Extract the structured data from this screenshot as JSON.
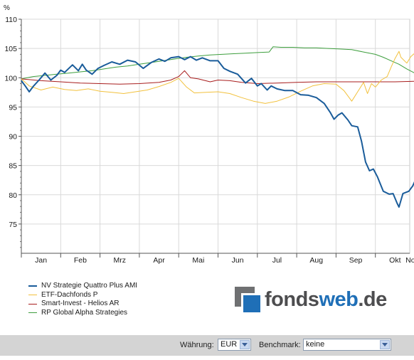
{
  "chart_data": {
    "type": "line",
    "ylabel": "%",
    "ylim": [
      70,
      110
    ],
    "yticks": [
      75,
      80,
      85,
      90,
      95,
      100,
      105,
      110
    ],
    "xlim": [
      0,
      10.3
    ],
    "month_labels": [
      "Jan",
      "Feb",
      "Mrz",
      "Apr",
      "Mai",
      "Jun",
      "Jul",
      "Aug",
      "Sep",
      "Okt",
      "Nov"
    ],
    "grid": true,
    "legend_position": "bottom-left",
    "series": [
      {
        "name": "NV Strategie Quattro Plus AMI",
        "color": "#1a5c9a",
        "width": 2,
        "points": [
          [
            0,
            99.5
          ],
          [
            0.1,
            98.6
          ],
          [
            0.2,
            97.6
          ],
          [
            0.3,
            98.5
          ],
          [
            0.45,
            99.6
          ],
          [
            0.6,
            100.8
          ],
          [
            0.75,
            99.6
          ],
          [
            0.9,
            100.4
          ],
          [
            1.0,
            101.3
          ],
          [
            1.1,
            100.9
          ],
          [
            1.3,
            102.2
          ],
          [
            1.45,
            101.2
          ],
          [
            1.55,
            102.3
          ],
          [
            1.65,
            101.3
          ],
          [
            1.8,
            100.6
          ],
          [
            1.95,
            101.6
          ],
          [
            2.1,
            102.1
          ],
          [
            2.3,
            102.7
          ],
          [
            2.5,
            102.3
          ],
          [
            2.7,
            103.0
          ],
          [
            2.9,
            102.7
          ],
          [
            3.1,
            101.6
          ],
          [
            3.3,
            102.6
          ],
          [
            3.5,
            103.2
          ],
          [
            3.65,
            102.8
          ],
          [
            3.8,
            103.4
          ],
          [
            4.0,
            103.6
          ],
          [
            4.15,
            103.1
          ],
          [
            4.3,
            103.6
          ],
          [
            4.45,
            103.0
          ],
          [
            4.6,
            103.4
          ],
          [
            4.8,
            102.9
          ],
          [
            5.0,
            102.9
          ],
          [
            5.15,
            101.6
          ],
          [
            5.3,
            101.1
          ],
          [
            5.5,
            100.6
          ],
          [
            5.7,
            99.1
          ],
          [
            5.85,
            99.9
          ],
          [
            6.0,
            98.6
          ],
          [
            6.1,
            99.0
          ],
          [
            6.25,
            97.9
          ],
          [
            6.35,
            98.6
          ],
          [
            6.5,
            98.1
          ],
          [
            6.7,
            97.8
          ],
          [
            6.9,
            97.8
          ],
          [
            7.1,
            97.1
          ],
          [
            7.3,
            97.0
          ],
          [
            7.5,
            96.6
          ],
          [
            7.7,
            95.6
          ],
          [
            7.85,
            94.1
          ],
          [
            7.95,
            92.9
          ],
          [
            8.05,
            93.6
          ],
          [
            8.15,
            94.0
          ],
          [
            8.3,
            92.8
          ],
          [
            8.4,
            91.8
          ],
          [
            8.55,
            91.6
          ],
          [
            8.65,
            89.1
          ],
          [
            8.75,
            85.6
          ],
          [
            8.85,
            84.1
          ],
          [
            8.95,
            84.4
          ],
          [
            9.05,
            83.1
          ],
          [
            9.2,
            80.6
          ],
          [
            9.35,
            80.1
          ],
          [
            9.45,
            80.2
          ],
          [
            9.55,
            78.6
          ],
          [
            9.6,
            77.9
          ],
          [
            9.7,
            80.2
          ],
          [
            9.85,
            80.6
          ],
          [
            9.95,
            81.5
          ],
          [
            10.05,
            83.0
          ],
          [
            10.15,
            80.7
          ],
          [
            10.25,
            80.5
          ]
        ]
      },
      {
        "name": "ETF-Dachfonds P",
        "color": "#f2c13d",
        "width": 1,
        "points": [
          [
            0,
            99.8
          ],
          [
            0.2,
            98.6
          ],
          [
            0.5,
            97.9
          ],
          [
            0.8,
            98.4
          ],
          [
            1.1,
            98.0
          ],
          [
            1.4,
            97.8
          ],
          [
            1.7,
            98.1
          ],
          [
            2.0,
            97.7
          ],
          [
            2.3,
            97.5
          ],
          [
            2.6,
            97.3
          ],
          [
            2.9,
            97.6
          ],
          [
            3.2,
            97.9
          ],
          [
            3.5,
            98.5
          ],
          [
            3.8,
            99.2
          ],
          [
            4.0,
            99.9
          ],
          [
            4.2,
            98.4
          ],
          [
            4.4,
            97.4
          ],
          [
            4.7,
            97.5
          ],
          [
            5.0,
            97.6
          ],
          [
            5.3,
            97.3
          ],
          [
            5.6,
            96.6
          ],
          [
            5.9,
            96.0
          ],
          [
            6.2,
            95.6
          ],
          [
            6.5,
            96.0
          ],
          [
            6.8,
            96.7
          ],
          [
            7.1,
            97.7
          ],
          [
            7.4,
            98.6
          ],
          [
            7.7,
            99.0
          ],
          [
            8.0,
            98.9
          ],
          [
            8.2,
            97.8
          ],
          [
            8.4,
            96.0
          ],
          [
            8.55,
            97.6
          ],
          [
            8.7,
            99.2
          ],
          [
            8.8,
            97.3
          ],
          [
            8.9,
            99.0
          ],
          [
            9.0,
            98.4
          ],
          [
            9.15,
            99.6
          ],
          [
            9.3,
            100.2
          ],
          [
            9.4,
            101.8
          ],
          [
            9.5,
            103.3
          ],
          [
            9.6,
            104.5
          ],
          [
            9.65,
            103.5
          ],
          [
            9.8,
            102.5
          ],
          [
            9.9,
            103.6
          ],
          [
            10.0,
            104.2
          ],
          [
            10.1,
            103.2
          ],
          [
            10.25,
            103.6
          ]
        ]
      },
      {
        "name": "Smart-Invest - Helios AR",
        "color": "#a81d1d",
        "width": 1,
        "points": [
          [
            0,
            99.8
          ],
          [
            0.5,
            99.5
          ],
          [
            1.0,
            99.3
          ],
          [
            1.5,
            99.1
          ],
          [
            2.0,
            99.0
          ],
          [
            2.5,
            98.9
          ],
          [
            3.0,
            99.0
          ],
          [
            3.5,
            99.2
          ],
          [
            3.8,
            99.6
          ],
          [
            4.0,
            100.2
          ],
          [
            4.15,
            101.2
          ],
          [
            4.3,
            100.0
          ],
          [
            4.5,
            99.8
          ],
          [
            4.8,
            99.3
          ],
          [
            5.0,
            99.6
          ],
          [
            5.3,
            99.5
          ],
          [
            5.6,
            99.2
          ],
          [
            6.0,
            99.0
          ],
          [
            6.5,
            99.1
          ],
          [
            7.0,
            99.2
          ],
          [
            7.5,
            99.3
          ],
          [
            8.0,
            99.3
          ],
          [
            8.5,
            99.3
          ],
          [
            9.0,
            99.3
          ],
          [
            9.5,
            99.3
          ],
          [
            10.0,
            99.4
          ],
          [
            10.25,
            99.4
          ]
        ]
      },
      {
        "name": "RP Global Alpha Strategies",
        "color": "#3d9e3d",
        "width": 1,
        "points": [
          [
            0,
            99.8
          ],
          [
            0.3,
            100.2
          ],
          [
            0.6,
            100.4
          ],
          [
            0.9,
            100.6
          ],
          [
            1.2,
            100.8
          ],
          [
            1.5,
            101.0
          ],
          [
            1.8,
            101.2
          ],
          [
            2.1,
            101.5
          ],
          [
            2.4,
            101.8
          ],
          [
            2.7,
            102.0
          ],
          [
            3.0,
            102.3
          ],
          [
            3.3,
            102.6
          ],
          [
            3.6,
            102.9
          ],
          [
            3.9,
            103.2
          ],
          [
            4.2,
            103.5
          ],
          [
            4.5,
            103.7
          ],
          [
            4.8,
            103.9
          ],
          [
            5.1,
            104.0
          ],
          [
            5.4,
            104.1
          ],
          [
            5.7,
            104.2
          ],
          [
            6.0,
            104.3
          ],
          [
            6.3,
            104.4
          ],
          [
            6.4,
            105.3
          ],
          [
            6.6,
            105.2
          ],
          [
            6.9,
            105.2
          ],
          [
            7.2,
            105.1
          ],
          [
            7.5,
            105.1
          ],
          [
            7.8,
            105.0
          ],
          [
            8.1,
            104.9
          ],
          [
            8.4,
            104.8
          ],
          [
            8.7,
            104.4
          ],
          [
            9.0,
            104.0
          ],
          [
            9.2,
            103.5
          ],
          [
            9.4,
            102.9
          ],
          [
            9.6,
            102.3
          ],
          [
            9.8,
            101.5
          ],
          [
            10.0,
            100.8
          ],
          [
            10.25,
            100.6
          ]
        ]
      }
    ]
  },
  "logo": {
    "part1": "fonds",
    "part2": "web",
    "part3": ".de"
  },
  "toolbar": {
    "currency_label": "Währung:",
    "currency_value": "EUR",
    "benchmark_label": "Benchmark:",
    "benchmark_value": "keine"
  }
}
